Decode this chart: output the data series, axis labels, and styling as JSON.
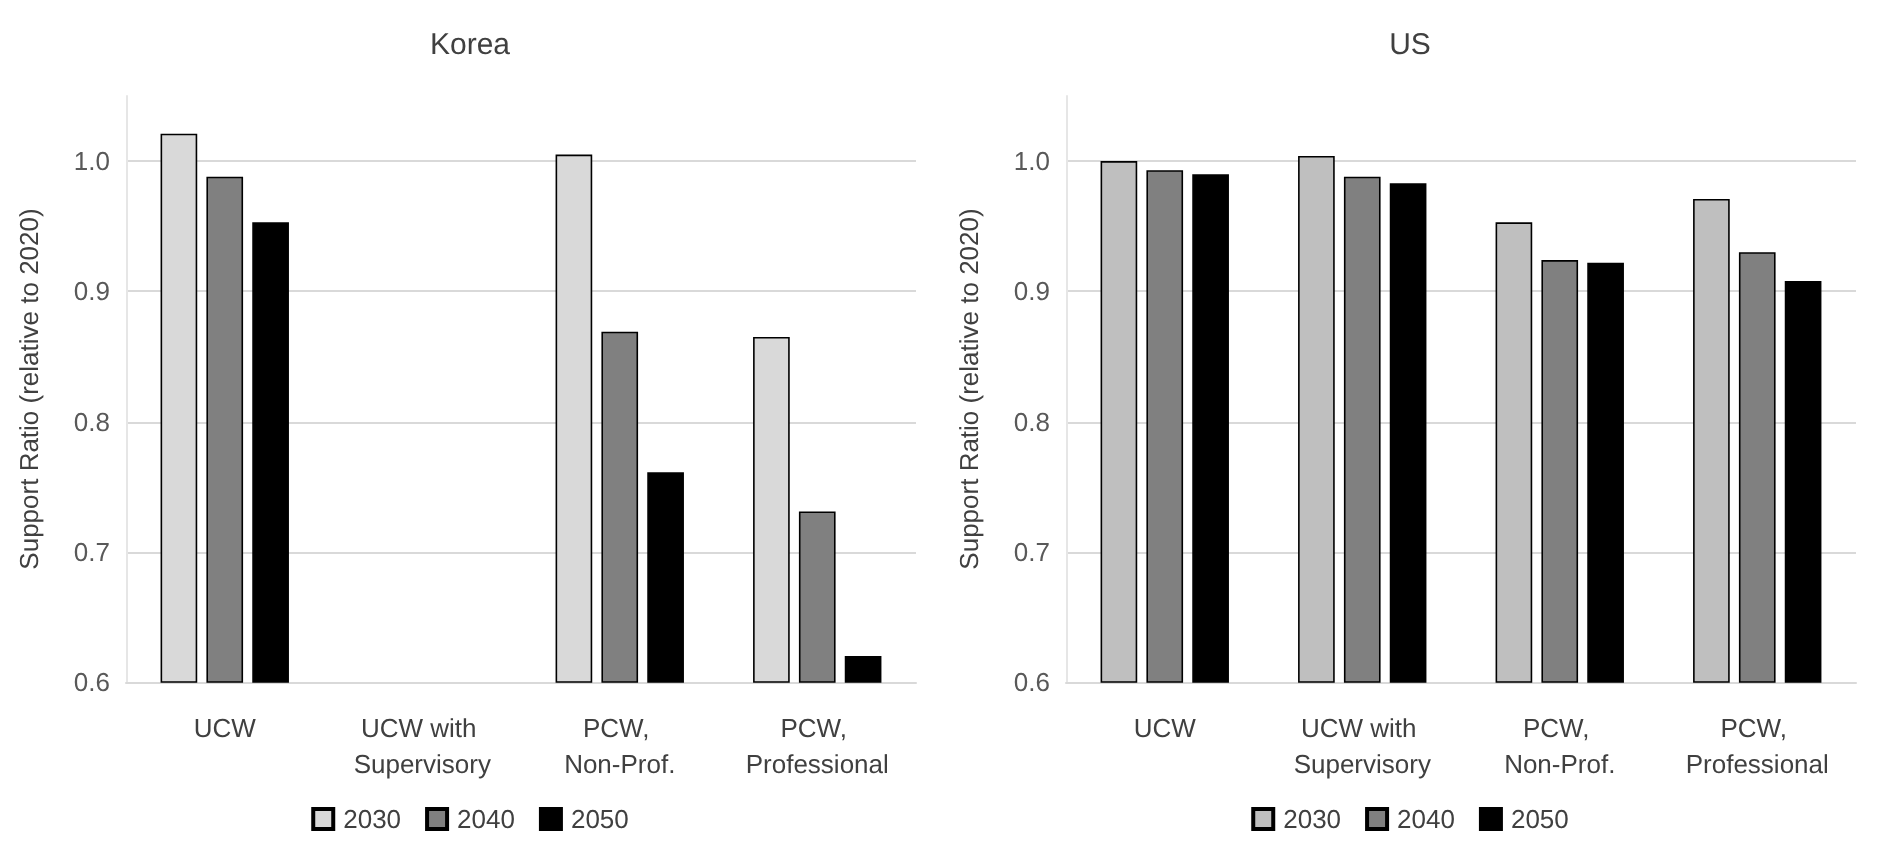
{
  "chart_data": [
    {
      "type": "bar",
      "title": "Korea",
      "ylabel": "Support Ratio (relative to 2020)",
      "categories": [
        "UCW",
        "UCW with Supervisory",
        "PCW, Non-Prof.",
        "PCW, Professional"
      ],
      "series": [
        {
          "name": "2030",
          "color": "#d9d9d9",
          "values": [
            1.021,
            null,
            1.005,
            0.865
          ]
        },
        {
          "name": "2040",
          "color": "#808080",
          "values": [
            0.988,
            null,
            0.869,
            0.731
          ]
        },
        {
          "name": "2050",
          "color": "#000000",
          "values": [
            0.953,
            null,
            0.761,
            0.62
          ]
        }
      ],
      "ylim": [
        0.6,
        1.05
      ],
      "yticks": [
        0.6,
        0.7,
        0.8,
        0.9,
        {
          "value": 1,
          "label": "1.0"
        }
      ],
      "grid": "y",
      "legend": "bottom"
    },
    {
      "type": "bar",
      "title": "US",
      "ylabel": "Support Ratio (relative to 2020)",
      "categories": [
        "UCW",
        "UCW with Supervisory",
        "PCW, Non-Prof.",
        "PCW, Professional"
      ],
      "series": [
        {
          "name": "2030",
          "color": "#bfbfbf",
          "values": [
            1.0,
            1.004,
            0.953,
            0.971
          ]
        },
        {
          "name": "2040",
          "color": "#808080",
          "values": [
            0.993,
            0.988,
            0.924,
            0.93
          ]
        },
        {
          "name": "2050",
          "color": "#000000",
          "values": [
            0.99,
            0.983,
            0.922,
            0.908
          ]
        }
      ],
      "ylim": [
        0.6,
        1.05
      ],
      "yticks": [
        0.6,
        0.7,
        0.8,
        0.9,
        {
          "value": 1,
          "label": "1.0"
        }
      ],
      "grid": "y",
      "legend": "bottom"
    }
  ]
}
